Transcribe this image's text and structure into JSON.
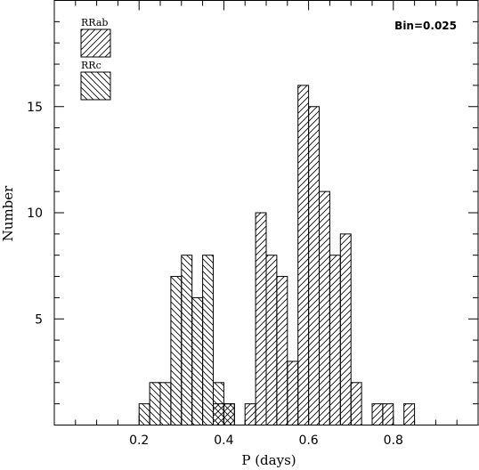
{
  "chart_data": {
    "type": "histogram",
    "annotation": "Bin=0.025",
    "xlabel": "P (days)",
    "ylabel": "Number",
    "xlim": [
      0.0,
      1.0
    ],
    "ylim": [
      0,
      20
    ],
    "xticks": [
      {
        "value": 0.2,
        "label": "0.2"
      },
      {
        "value": 0.4,
        "label": "0.4"
      },
      {
        "value": 0.6,
        "label": "0.6"
      },
      {
        "value": 0.8,
        "label": "0.8"
      }
    ],
    "yticks": [
      {
        "value": 5,
        "label": "5"
      },
      {
        "value": 10,
        "label": "10"
      },
      {
        "value": 15,
        "label": "15"
      }
    ],
    "bin_width": 0.025,
    "series": [
      {
        "name": "RRab",
        "hatch": "forward",
        "bins": [
          {
            "x": 0.375,
            "count": 1
          },
          {
            "x": 0.4,
            "count": 1
          },
          {
            "x": 0.425,
            "count": 0
          },
          {
            "x": 0.45,
            "count": 1
          },
          {
            "x": 0.475,
            "count": 10
          },
          {
            "x": 0.5,
            "count": 8
          },
          {
            "x": 0.525,
            "count": 7
          },
          {
            "x": 0.55,
            "count": 3
          },
          {
            "x": 0.575,
            "count": 16
          },
          {
            "x": 0.6,
            "count": 15
          },
          {
            "x": 0.625,
            "count": 11
          },
          {
            "x": 0.65,
            "count": 8
          },
          {
            "x": 0.675,
            "count": 9
          },
          {
            "x": 0.7,
            "count": 2
          },
          {
            "x": 0.725,
            "count": 0
          },
          {
            "x": 0.75,
            "count": 1
          },
          {
            "x": 0.775,
            "count": 1
          },
          {
            "x": 0.8,
            "count": 0
          },
          {
            "x": 0.825,
            "count": 1
          }
        ]
      },
      {
        "name": "RRc",
        "hatch": "backward",
        "bins": [
          {
            "x": 0.2,
            "count": 1
          },
          {
            "x": 0.225,
            "count": 2
          },
          {
            "x": 0.25,
            "count": 2
          },
          {
            "x": 0.275,
            "count": 7
          },
          {
            "x": 0.3,
            "count": 8
          },
          {
            "x": 0.325,
            "count": 6
          },
          {
            "x": 0.35,
            "count": 8
          },
          {
            "x": 0.375,
            "count": 2
          },
          {
            "x": 0.4,
            "count": 1
          }
        ]
      }
    ]
  }
}
